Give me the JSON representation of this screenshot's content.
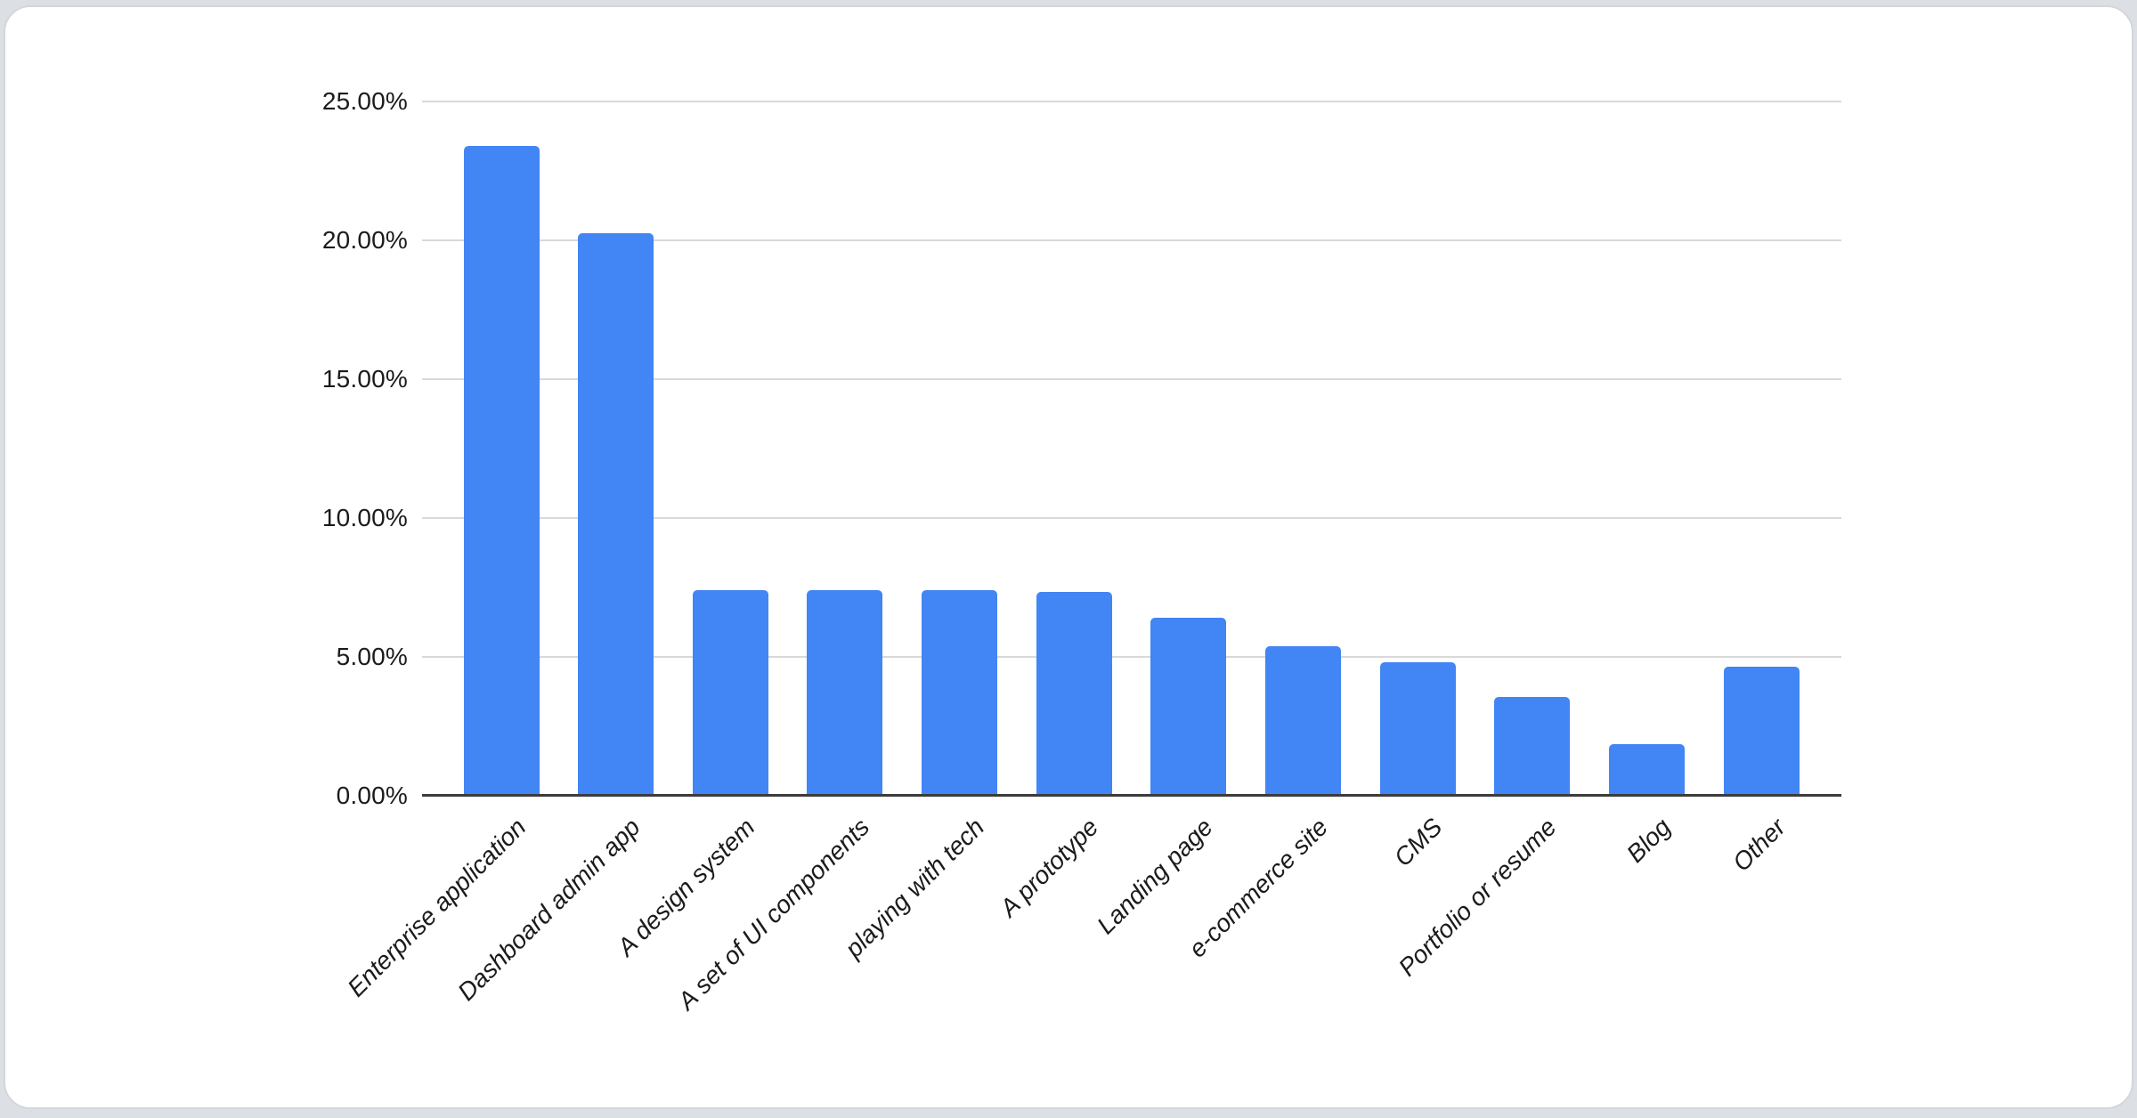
{
  "chart_data": {
    "type": "bar",
    "title": "",
    "xlabel": "",
    "ylabel": "",
    "categories": [
      "Enterprise application",
      "Dashboard admin app",
      "A design system",
      "A set of UI components",
      "playing with tech",
      "A prototype",
      "Landing page",
      "e-commerce site",
      "CMS",
      "Portfolio or resume",
      "Blog",
      "Other"
    ],
    "values": [
      23.4,
      20.25,
      7.4,
      7.4,
      7.4,
      7.35,
      6.4,
      5.4,
      4.8,
      3.55,
      1.85,
      4.65
    ],
    "value_unit": "percent",
    "ylim": [
      0,
      25
    ],
    "ytick_step": 5,
    "ytick_labels": [
      "0.00%",
      "5.00%",
      "10.00%",
      "15.00%",
      "20.00%",
      "25.00%"
    ],
    "grid": true,
    "legend": "none",
    "x_label_rotation_deg": -45,
    "x_label_style": "italic",
    "colors": {
      "bar": "#4285f4",
      "gridline": "#d9d9d9",
      "axis_line": "#3c3c3c",
      "tick_text": "#1b1b1b",
      "card_background": "#ffffff",
      "card_border": "#d3d7db",
      "page_background": "#dcdfe3"
    }
  }
}
